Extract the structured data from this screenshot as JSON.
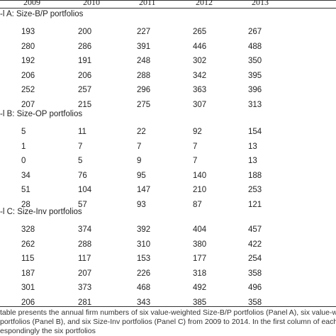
{
  "header": {
    "years": [
      "2009",
      "2010",
      "2011",
      "2012",
      "2013"
    ]
  },
  "panels": [
    {
      "title": "-l A: Size-B/P portfolios",
      "rows": [
        [
          "193",
          "200",
          "227",
          "265",
          "267"
        ],
        [
          "280",
          "286",
          "391",
          "446",
          "488"
        ],
        [
          "192",
          "191",
          "248",
          "302",
          "350"
        ],
        [
          "206",
          "206",
          "288",
          "342",
          "395"
        ],
        [
          "252",
          "257",
          "296",
          "363",
          "396"
        ],
        [
          "207",
          "215",
          "275",
          "307",
          "313"
        ]
      ]
    },
    {
      "title": "-l B: Size-OP portfolios",
      "rows": [
        [
          "5",
          "11",
          "22",
          "92",
          "154"
        ],
        [
          "1",
          "7",
          "7",
          "7",
          "13"
        ],
        [
          "0",
          "5",
          "9",
          "7",
          "13"
        ],
        [
          "34",
          "76",
          "95",
          "140",
          "188"
        ],
        [
          "51",
          "104",
          "147",
          "210",
          "253"
        ],
        [
          "28",
          "57",
          "93",
          "87",
          "121"
        ]
      ]
    },
    {
      "title": "-l C: Size-Inv portfolios",
      "rows": [
        [
          "328",
          "374",
          "392",
          "404",
          "457"
        ],
        [
          "262",
          "288",
          "310",
          "380",
          "422"
        ],
        [
          "115",
          "117",
          "153",
          "177",
          "254"
        ],
        [
          "187",
          "207",
          "226",
          "318",
          "358"
        ],
        [
          "301",
          "373",
          "468",
          "492",
          "496"
        ],
        [
          "206",
          "281",
          "343",
          "385",
          "358"
        ]
      ]
    }
  ],
  "caption": {
    "line1": "table presents the annual firm numbers of six value-weighted Size-B/P portfolios (Panel A), six value-weighted Si",
    "line2": "portfolios (Panel B), and six Size-Inv portfolios (Panel C) from 2009 to 2014. In the first column of each panel prese",
    "line3": "espondingly the six portfolios"
  }
}
